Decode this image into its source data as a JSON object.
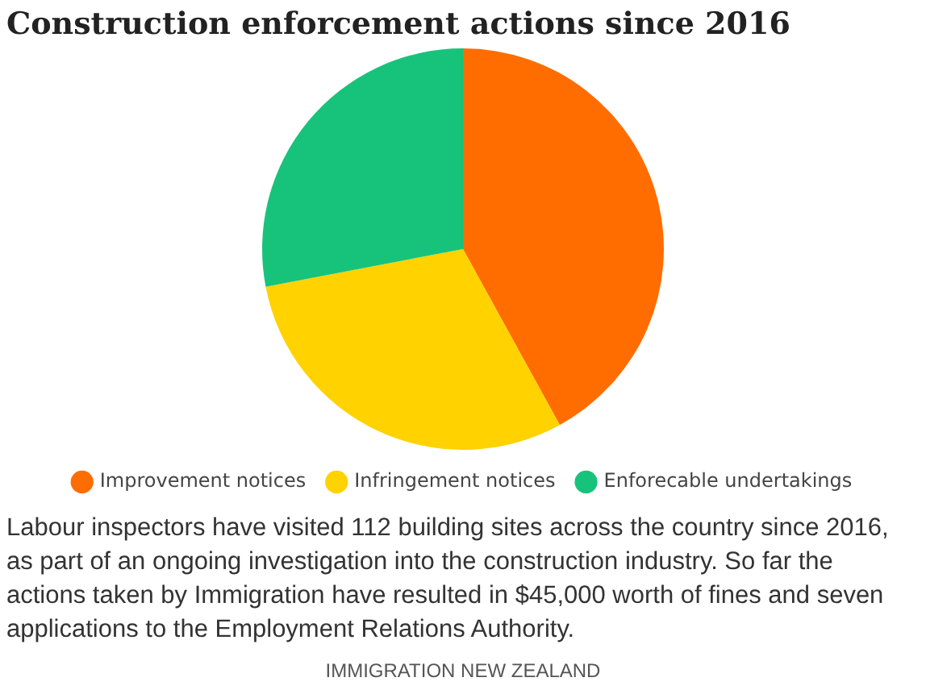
{
  "chart_data": {
    "type": "pie",
    "title": "Construction enforcement actions since 2016",
    "categories": [
      "Improvement notices",
      "Infringement notices",
      "Enforecable undertakings"
    ],
    "values": [
      42,
      30,
      28
    ],
    "colors": [
      "#ff6d00",
      "#ffd200",
      "#17c37b"
    ],
    "legend": "bottom",
    "annotations": [
      "Labour inspectors have visited 112 building sites across the country since 2016, as part of an ongoing investigation into the construction industry. So far the actions taken by Immigration have resulted in $45,000 worth of fines and seven applications to the Employment Relations Authority.",
      "IMMIGRATION NEW ZEALAND"
    ]
  }
}
